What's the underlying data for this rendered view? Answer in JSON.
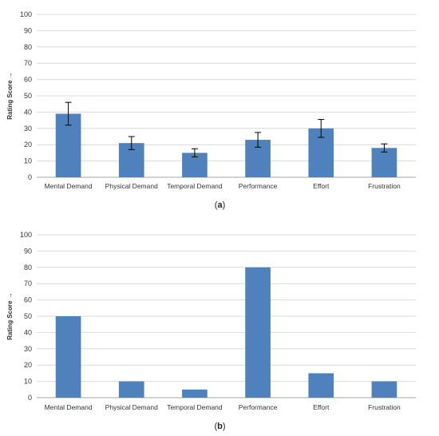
{
  "chart_data": [
    {
      "type": "bar",
      "title": "",
      "caption": "(a)",
      "caption_letter": "a",
      "xlabel": "",
      "ylabel": "Rating Score →",
      "ylim": [
        0,
        100
      ],
      "yticks": [
        0,
        10,
        20,
        30,
        40,
        50,
        60,
        70,
        80,
        90,
        100
      ],
      "grid": true,
      "legend": "none",
      "bar_color": "#4f81bd",
      "categories": [
        "Mental Demand",
        "Physical Demand",
        "Temporal Demand",
        "Performance",
        "Effort",
        "Frustration"
      ],
      "values": [
        39,
        21,
        15,
        23,
        30,
        18
      ],
      "error_bars": [
        7,
        4,
        2.5,
        4.5,
        5.5,
        2.5
      ]
    },
    {
      "type": "bar",
      "title": "",
      "caption": "(b)",
      "caption_letter": "b",
      "xlabel": "",
      "ylabel": "Rating Score →",
      "ylim": [
        0,
        100
      ],
      "yticks": [
        0,
        10,
        20,
        30,
        40,
        50,
        60,
        70,
        80,
        90,
        100
      ],
      "grid": true,
      "legend": "none",
      "bar_color": "#4f81bd",
      "categories": [
        "Mental Demand",
        "Physical Demand",
        "Temporal Demand",
        "Performance",
        "Effort",
        "Frustration"
      ],
      "values": [
        50,
        10,
        5,
        80,
        15,
        10
      ]
    }
  ]
}
